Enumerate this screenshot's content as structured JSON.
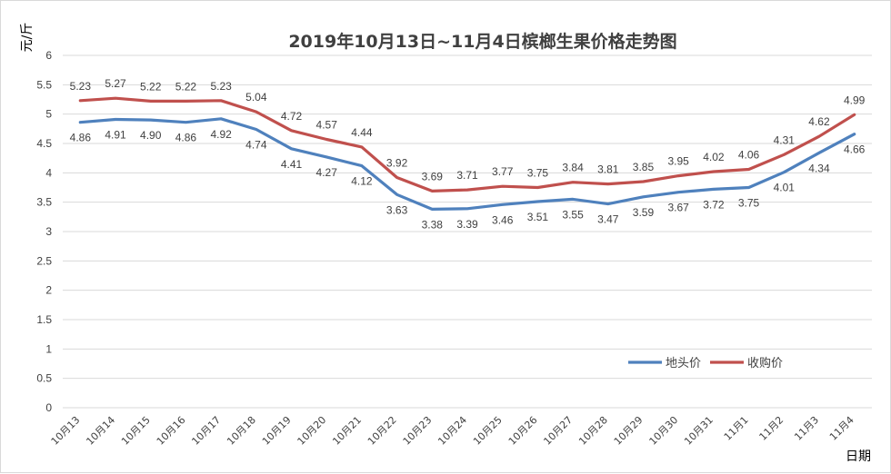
{
  "chart_data": {
    "type": "line",
    "title": "2019年10月13日~11月4日槟榔生果价格走势图",
    "ylabel": "元/斤",
    "xlabel": "日期",
    "ylim": [
      0,
      6
    ],
    "yticks": [
      "0",
      "0.5",
      "1",
      "1.5",
      "2",
      "2.5",
      "3",
      "3.5",
      "4",
      "4.5",
      "5",
      "5.5",
      "6"
    ],
    "grid": true,
    "legend_position": "lower-right",
    "categories": [
      "10月13",
      "10月14",
      "10月15",
      "10月16",
      "10月17",
      "10月18",
      "10月19",
      "10月20",
      "10月21",
      "10月22",
      "10月23",
      "10月24",
      "10月25",
      "10月26",
      "10月27",
      "10月28",
      "10月29",
      "10月30",
      "10月31",
      "11月1",
      "11月2",
      "11月3",
      "11月4"
    ],
    "series": [
      {
        "name": "地头价",
        "color": "#4f81bd",
        "values": [
          4.86,
          4.91,
          4.9,
          4.86,
          4.92,
          4.74,
          4.41,
          4.27,
          4.12,
          3.63,
          3.38,
          3.39,
          3.46,
          3.51,
          3.55,
          3.47,
          3.59,
          3.67,
          3.72,
          3.75,
          4.01,
          4.34,
          4.66
        ],
        "labels": [
          "4.86",
          "4.91",
          "4.90",
          "4.86",
          "4.92",
          "4.74",
          "4.41",
          "4.27",
          "4.12",
          "3.63",
          "3.38",
          "3.39",
          "3.46",
          "3.51",
          "3.55",
          "3.47",
          "3.59",
          "3.67",
          "3.72",
          "3.75",
          "4.01",
          "4.34",
          "4.66"
        ]
      },
      {
        "name": "收购价",
        "color": "#c0504d",
        "values": [
          5.23,
          5.27,
          5.22,
          5.22,
          5.23,
          5.04,
          4.72,
          4.57,
          4.44,
          3.92,
          3.69,
          3.71,
          3.77,
          3.75,
          3.84,
          3.81,
          3.85,
          3.95,
          4.02,
          4.06,
          4.31,
          4.62,
          4.99
        ],
        "labels": [
          "5.23",
          "5.27",
          "5.22",
          "5.22",
          "5.23",
          "5.04",
          "4.72",
          "4.57",
          "4.44",
          "3.92",
          "3.69",
          "3.71",
          "3.77",
          "3.75",
          "3.84",
          "3.81",
          "3.85",
          "3.95",
          "4.02",
          "4.06",
          "4.31",
          "4.62",
          "4.99"
        ]
      }
    ]
  }
}
